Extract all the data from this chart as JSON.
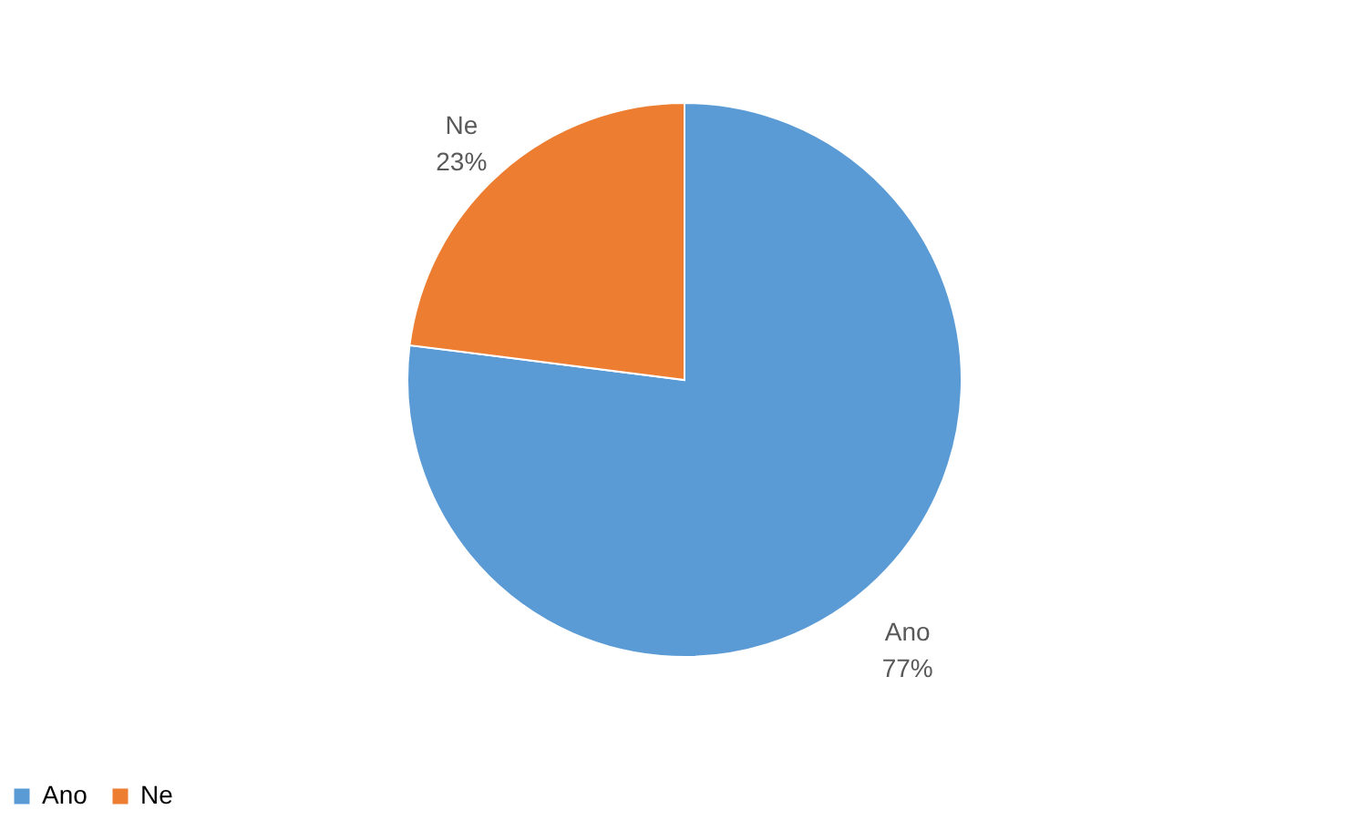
{
  "chart_data": {
    "type": "pie",
    "categories": [
      "Ano",
      "Ne"
    ],
    "values": [
      77,
      23
    ],
    "value_labels": [
      "77%",
      "23%"
    ],
    "colors": [
      "#5b9bd5",
      "#ed7d31"
    ],
    "data_labels": true,
    "legend": "bottom"
  }
}
